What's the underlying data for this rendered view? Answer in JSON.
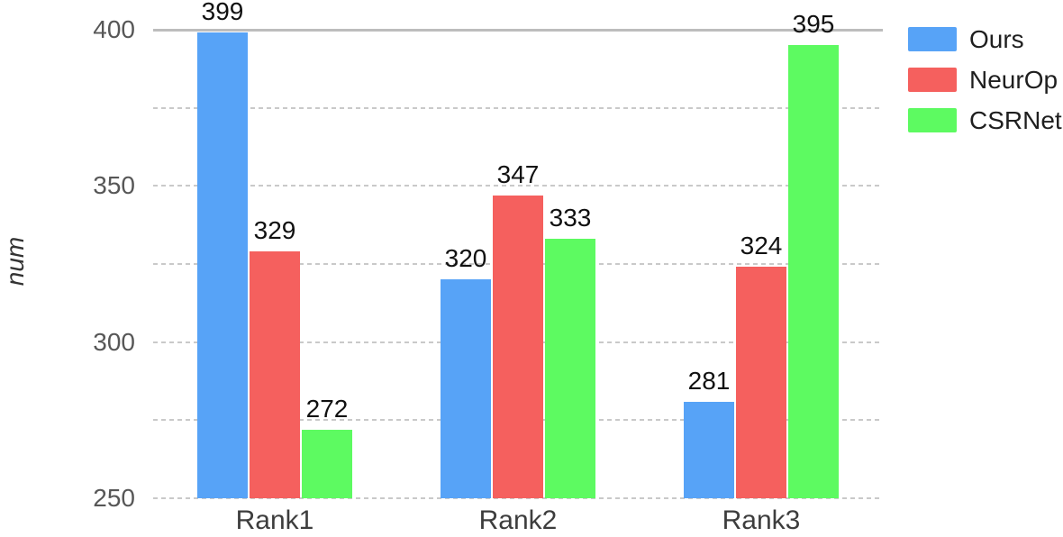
{
  "figure": {
    "background": "#ffffff"
  },
  "chart_data": {
    "type": "bar",
    "title": "",
    "xlabel": "",
    "ylabel": "num",
    "categories": [
      "Rank1",
      "Rank2",
      "Rank3"
    ],
    "series": [
      {
        "name": "Ours",
        "color": "#57a3f7",
        "values": [
          399,
          320,
          281
        ]
      },
      {
        "name": "NeurOp",
        "color": "#f5605e",
        "values": [
          329,
          347,
          324
        ]
      },
      {
        "name": "CSRNet",
        "color": "#5dfa61",
        "values": [
          272,
          333,
          395
        ]
      }
    ],
    "ylim": [
      250,
      400
    ],
    "ytick_labels": [
      400,
      350,
      300,
      250
    ],
    "grid_step": 25,
    "grid": true,
    "value_labels_shown": true,
    "legend_position": "right"
  },
  "style": {
    "grid_dash_color": "#c9c9c9",
    "grid_solid_top_color": "#bdbdbd",
    "ytick_color": "#575757",
    "xtick_color": "#3d3d3d",
    "value_label_color": "#111111",
    "legend_text_color": "#1f1f1f",
    "ylabel_color": "#333333"
  }
}
